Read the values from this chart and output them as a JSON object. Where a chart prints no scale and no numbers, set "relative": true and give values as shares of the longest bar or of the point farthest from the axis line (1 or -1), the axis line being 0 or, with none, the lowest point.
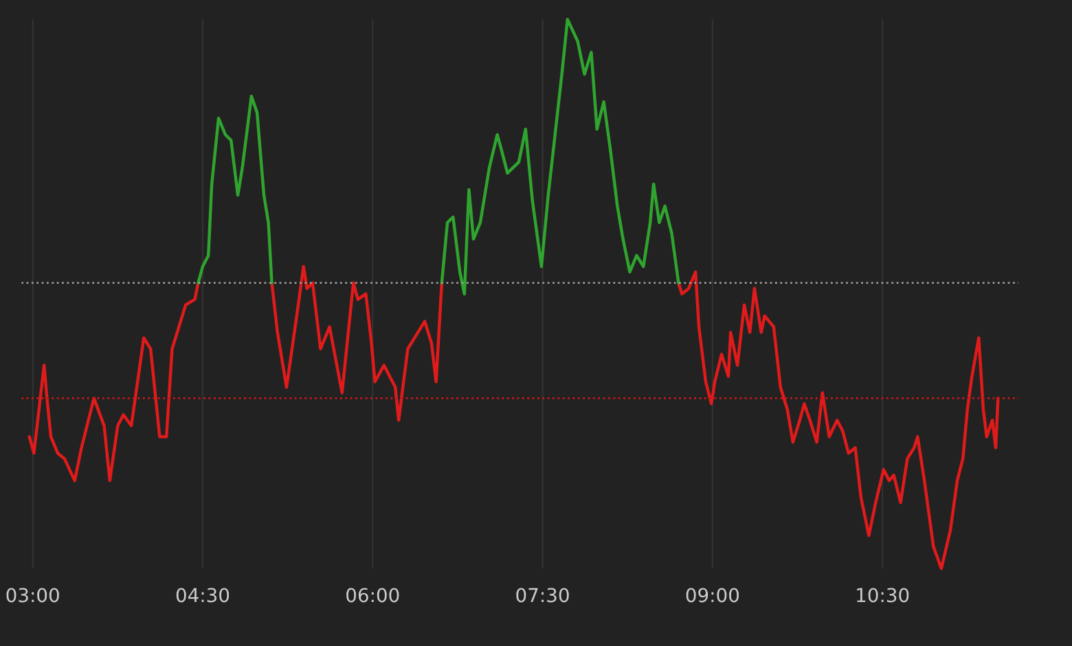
{
  "chart_data": {
    "type": "line",
    "relative": true,
    "xlim": [
      2.9,
      11.7
    ],
    "xticks": [
      {
        "value": 3,
        "label": "03:00"
      },
      {
        "value": 4.5,
        "label": "04:30"
      },
      {
        "value": 6,
        "label": "06:00"
      },
      {
        "value": 7.5,
        "label": "07:30"
      },
      {
        "value": 9,
        "label": "09:00"
      },
      {
        "value": 10.5,
        "label": "10:30"
      }
    ],
    "grid": "x",
    "ref_lines": [
      {
        "axis": "y",
        "value": 0.52,
        "color": "#9a9a9a",
        "line_style": "dotted"
      },
      {
        "axis": "y",
        "value": 0.31,
        "color": "#c01818",
        "line_style": "dotted"
      }
    ],
    "series": [
      {
        "color": "#e01b1b",
        "x": [
          2.97,
          3.01,
          3.1,
          3.13,
          3.16,
          3.22,
          3.28,
          3.37,
          3.43,
          3.54,
          3.63,
          3.68,
          3.75,
          3.8,
          3.87,
          3.98,
          4.04,
          4.12,
          4.18,
          4.23,
          4.29,
          4.35,
          4.43,
          4.46,
          4.47,
          5.11,
          5.16,
          5.24,
          5.33,
          5.39,
          5.42,
          5.47,
          5.54,
          5.62,
          5.73,
          5.83,
          5.87,
          5.94,
          5.99,
          6.02,
          6.1,
          6.2,
          6.23,
          6.31,
          6.4,
          6.46,
          6.52,
          6.56,
          6.61,
          6.62,
          8.7,
          8.73,
          8.79,
          8.85,
          8.88,
          8.94,
          8.99,
          9.02,
          9.08,
          9.14,
          9.16,
          9.22,
          9.28,
          9.33,
          9.37,
          9.43,
          9.46,
          9.54,
          9.6,
          9.66,
          9.71,
          9.77,
          9.81,
          9.86,
          9.92,
          9.97,
          10.03,
          10.1,
          10.15,
          10.2,
          10.26,
          10.31,
          10.38,
          10.44,
          10.51,
          10.56,
          10.6,
          10.66,
          10.72,
          10.78,
          10.81,
          10.87,
          10.95,
          11.02,
          11.1,
          11.16,
          11.21,
          11.25,
          11.29,
          11.35,
          11.39,
          11.42,
          11.47,
          11.5,
          11.52
        ],
        "values": [
          0.24,
          0.21,
          0.37,
          0.3,
          0.24,
          0.21,
          0.2,
          0.16,
          0.22,
          0.31,
          0.26,
          0.16,
          0.26,
          0.28,
          0.26,
          0.42,
          0.4,
          0.24,
          0.24,
          0.4,
          0.44,
          0.48,
          0.49,
          0.52,
          null,
          0.52,
          0.43,
          0.33,
          0.46,
          0.55,
          0.51,
          0.52,
          0.4,
          0.44,
          0.32,
          0.52,
          0.49,
          0.5,
          0.41,
          0.34,
          0.37,
          0.33,
          0.27,
          0.4,
          0.43,
          0.45,
          0.41,
          0.34,
          0.52,
          null,
          0.52,
          0.5,
          0.51,
          0.54,
          0.44,
          0.34,
          0.3,
          0.34,
          0.39,
          0.35,
          0.43,
          0.37,
          0.48,
          0.43,
          0.51,
          0.43,
          0.46,
          0.44,
          0.33,
          0.29,
          0.23,
          0.27,
          0.3,
          0.27,
          0.23,
          0.32,
          0.24,
          0.27,
          0.25,
          0.21,
          0.22,
          0.13,
          0.06,
          0.12,
          0.18,
          0.16,
          0.17,
          0.12,
          0.2,
          0.22,
          0.24,
          0.16,
          0.04,
          0.0,
          0.07,
          0.16,
          0.2,
          0.29,
          0.35,
          0.42,
          0.29,
          0.24,
          0.27,
          0.22,
          0.31
        ]
      },
      {
        "color": "#2fa52f",
        "x": [
          4.46,
          4.5,
          4.55,
          4.58,
          4.64,
          4.7,
          4.75,
          4.81,
          4.85,
          4.93,
          4.98,
          5.04,
          5.08,
          5.11,
          5.12,
          6.61,
          6.66,
          6.71,
          6.77,
          6.81,
          6.85,
          6.89,
          6.95,
          7.03,
          7.1,
          7.14,
          7.19,
          7.29,
          7.35,
          7.41,
          7.49,
          7.55,
          7.61,
          7.67,
          7.72,
          7.81,
          7.87,
          7.93,
          7.98,
          8.04,
          8.1,
          8.16,
          8.21,
          8.27,
          8.33,
          8.39,
          8.45,
          8.48,
          8.53,
          8.58,
          8.64,
          8.7
        ],
        "values": [
          0.52,
          0.55,
          0.57,
          0.7,
          0.82,
          0.79,
          0.78,
          0.68,
          0.73,
          0.86,
          0.83,
          0.68,
          0.63,
          0.52,
          null,
          0.52,
          0.63,
          0.64,
          0.54,
          0.5,
          0.69,
          0.6,
          0.63,
          0.73,
          0.79,
          0.76,
          0.72,
          0.74,
          0.8,
          0.67,
          0.55,
          0.68,
          0.79,
          0.9,
          1.0,
          0.96,
          0.9,
          0.94,
          0.8,
          0.85,
          0.76,
          0.66,
          0.6,
          0.54,
          0.57,
          0.55,
          0.63,
          0.7,
          0.63,
          0.66,
          0.61,
          0.52
        ]
      }
    ]
  }
}
